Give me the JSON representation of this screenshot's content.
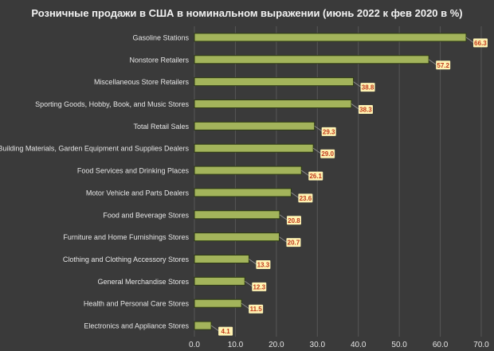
{
  "chart_data": {
    "type": "bar",
    "orientation": "horizontal",
    "title": "Розничные продажи в США в номинальном выражении (июнь 2022 к фев 2020 в %)",
    "categories": [
      "Gasoline Stations",
      "Nonstore Retailers",
      "Miscellaneous Store Retailers",
      "Sporting Goods, Hobby, Book, and Music Stores",
      "Total Retail Sales",
      "Building Materials, Garden Equipment and Supplies Dealers",
      "Food Services and Drinking Places",
      "Motor Vehicle and Parts Dealers",
      "Food and Beverage Stores",
      "Furniture and Home Furnishings Stores",
      "Clothing and Clothing Accessory Stores",
      "General Merchandise Stores",
      "Health and Personal Care Stores",
      "Electronics and Appliance Stores"
    ],
    "values": [
      66.3,
      57.2,
      38.8,
      38.3,
      29.3,
      29.0,
      26.1,
      23.6,
      20.8,
      20.7,
      13.3,
      12.3,
      11.5,
      4.1
    ],
    "value_labels": [
      "66.3",
      "57.2",
      "38.8",
      "38.3",
      "29.3",
      "29.0",
      "26.1",
      "23.6",
      "20.8",
      "20.7",
      "13.3",
      "12.3",
      "11.5",
      "4.1"
    ],
    "xlim": [
      0,
      70
    ],
    "xticks": [
      "0.0",
      "10.0",
      "20.0",
      "30.0",
      "40.0",
      "50.0",
      "60.0",
      "70.0"
    ],
    "grid": true,
    "legend": "none",
    "colors": {
      "background": "#3a3a3a",
      "bar_fill": "#a3b45b",
      "bar_stroke": "#2e3a14",
      "grid": "#575757",
      "text": "#e6e6e6",
      "label_fill": "#fff3b3",
      "label_text": "#c0391b"
    }
  }
}
